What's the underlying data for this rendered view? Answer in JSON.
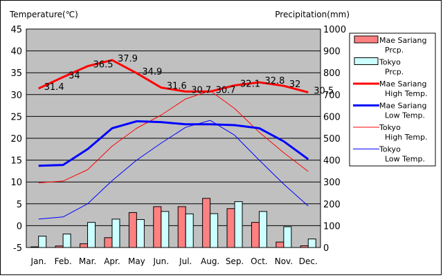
{
  "chart_data": {
    "type": "bar",
    "title": "",
    "categories": [
      "Jan.",
      "Feb.",
      "Mar.",
      "Apr.",
      "May",
      "Jun.",
      "Jul.",
      "Aug.",
      "Sep.",
      "Oct.",
      "Nov.",
      "Dec."
    ],
    "left_axis": {
      "label": "Temperature(℃)",
      "range": [
        -5,
        45
      ],
      "ticks": [
        45,
        40,
        35,
        30,
        25,
        20,
        15,
        10,
        5,
        0,
        -5
      ]
    },
    "right_axis": {
      "label": "Precipitation(mm)",
      "range": [
        0,
        1000
      ],
      "ticks": [
        1000,
        900,
        800,
        700,
        600,
        500,
        400,
        300,
        200,
        100,
        0
      ]
    },
    "grid": true,
    "legend": {
      "placement": "right",
      "entries": [
        {
          "line1": "Mae Sariang",
          "line2": "Prcp."
        },
        {
          "line1": "Tokyo",
          "line2": "Prcp."
        },
        {
          "line1": "Mae Sariang",
          "line2": "High Temp."
        },
        {
          "line1": "Mae Sariang",
          "line2": "Low Temp."
        },
        {
          "line1": "Tokyo",
          "line2": "High Temp."
        },
        {
          "line1": "Tokyo",
          "line2": "Low Temp."
        }
      ]
    },
    "bar_series": [
      {
        "name": "Mae Sariang Prcp.",
        "axis": "right",
        "color": "#ff8080",
        "values": [
          3,
          7,
          17,
          45,
          160,
          187,
          187,
          225,
          178,
          115,
          25,
          8
        ]
      },
      {
        "name": "Tokyo Prcp.",
        "axis": "right",
        "color": "#ccffff",
        "values": [
          52,
          62,
          115,
          130,
          128,
          165,
          154,
          155,
          210,
          165,
          95,
          39
        ]
      }
    ],
    "line_series": [
      {
        "name": "Mae Sariang High Temp.",
        "axis": "left",
        "color": "#ff0000",
        "width": 3,
        "values": [
          31.4,
          34,
          36.5,
          37.9,
          34.9,
          31.6,
          30.7,
          30.7,
          32.1,
          32.8,
          32,
          30.5
        ],
        "labels": [
          "31.4",
          "34",
          "36.5",
          "37.9",
          "34.9",
          "31.6",
          "30.7",
          "30.7",
          "32.1",
          "32.8",
          "32",
          "30.5"
        ]
      },
      {
        "name": "Mae Sariang Low Temp.",
        "axis": "left",
        "color": "#0000ff",
        "width": 3,
        "values": [
          13.7,
          13.9,
          17.5,
          22.3,
          23.9,
          23.7,
          23.2,
          23.2,
          23.0,
          22.3,
          19.3,
          15.2
        ]
      },
      {
        "name": "Tokyo High Temp.",
        "axis": "left",
        "color": "#ff0000",
        "width": 1,
        "values": [
          9.8,
          10.2,
          12.8,
          18.2,
          22.3,
          25.3,
          29.0,
          30.9,
          26.8,
          21.4,
          16.7,
          12.4
        ]
      },
      {
        "name": "Tokyo Low Temp.",
        "axis": "left",
        "color": "#0000ff",
        "width": 1,
        "values": [
          1.5,
          2.0,
          5.0,
          10.3,
          15.0,
          18.9,
          22.5,
          24.1,
          20.7,
          15.0,
          9.5,
          4.5
        ]
      }
    ]
  }
}
